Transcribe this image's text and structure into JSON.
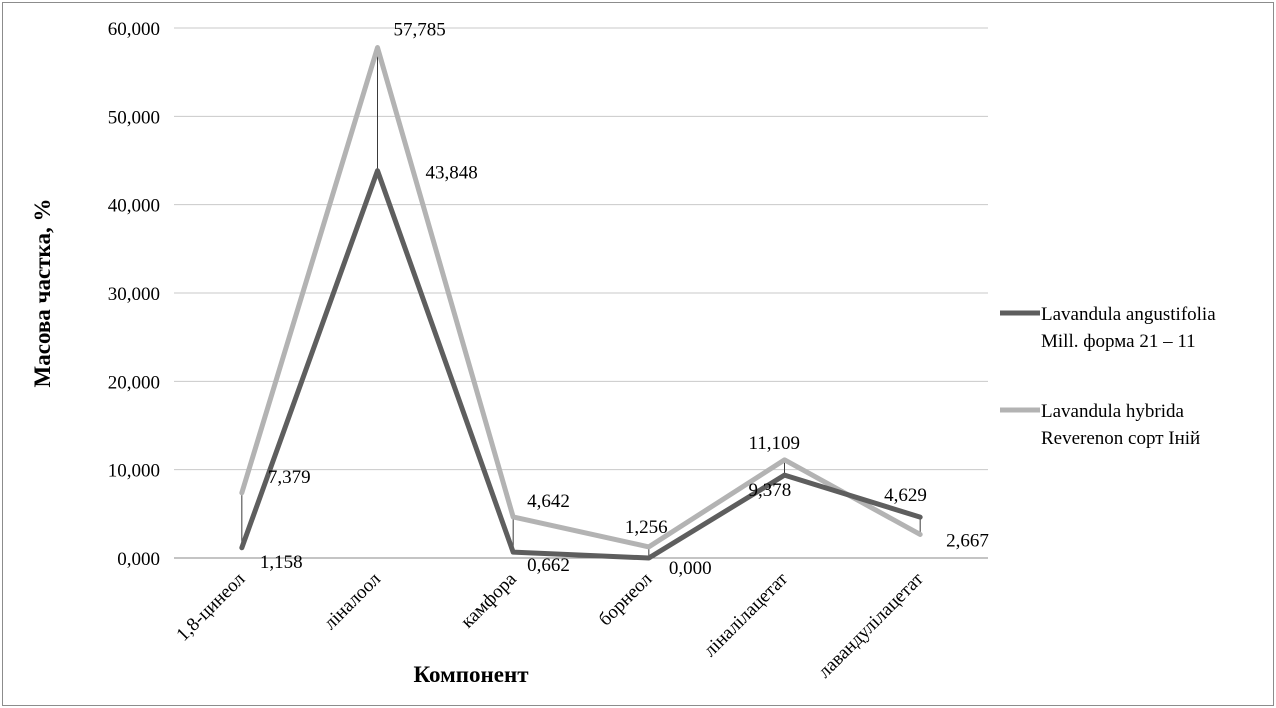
{
  "chart_data": {
    "type": "line",
    "title": "",
    "xlabel": "Компонент",
    "ylabel": "Масова частка, %",
    "ylim": [
      0,
      60
    ],
    "yticks": [
      "0,000",
      "10,000",
      "20,000",
      "30,000",
      "40,000",
      "50,000",
      "60,000"
    ],
    "grid": true,
    "legend_position": "right",
    "high_low_lines": true,
    "categories": [
      "1,8-цинеол",
      "ліналоол",
      "камфора",
      "борнеол",
      "ліналілацетат",
      "лавандулілацетат"
    ],
    "series": [
      {
        "name_lines": [
          "Lavandula angustifolia",
          "Mill. форма 21 – 11"
        ],
        "values": [
          1.158,
          43.848,
          0.662,
          0.0,
          9.378,
          4.629
        ],
        "labels": [
          "1,158",
          "43,848",
          "0,662",
          "0,000",
          "9,378",
          "4,629"
        ],
        "color": "#5e5e5e"
      },
      {
        "name_lines": [
          "Lavandula hybrida",
          "Reverenon сорт Іній"
        ],
        "values": [
          7.379,
          57.785,
          4.642,
          1.256,
          11.109,
          2.667
        ],
        "labels": [
          "7,379",
          "57,785",
          "4,642",
          "1,256",
          "11,109",
          "2,667"
        ],
        "color": "#b3b3b3"
      }
    ]
  }
}
